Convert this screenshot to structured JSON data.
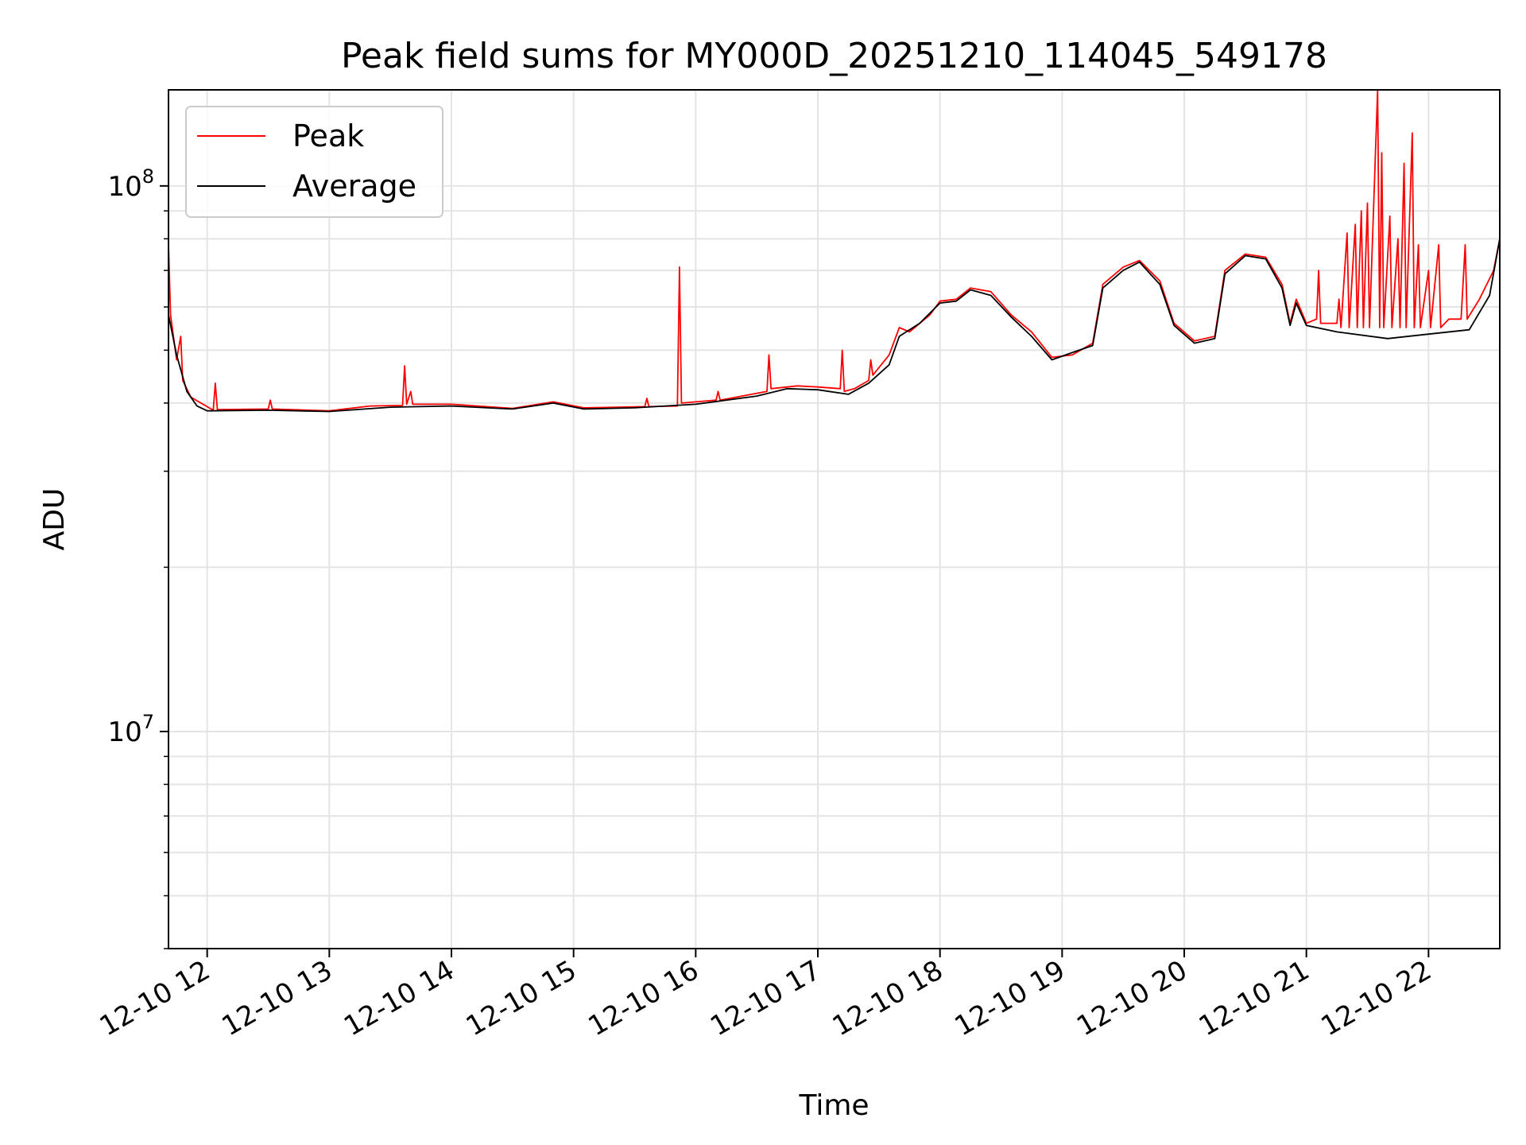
{
  "chart_data": {
    "type": "line",
    "title": "Peak field sums for MY000D_20251210_114045_549178",
    "xlabel": "Time",
    "ylabel": "ADU",
    "yscale": "log",
    "xlim": [
      "2025-12-10 11:41",
      "2025-12-10 22:35"
    ],
    "ylim": [
      4000000,
      150000000
    ],
    "grid": true,
    "legend_position": "upper-left",
    "x_ticks": [
      "12-10 12",
      "12-10 13",
      "12-10 14",
      "12-10 15",
      "12-10 16",
      "12-10 17",
      "12-10 18",
      "12-10 19",
      "12-10 20",
      "12-10 21",
      "12-10 22"
    ],
    "x_tick_times": [
      "2025-12-10 12:00",
      "2025-12-10 13:00",
      "2025-12-10 14:00",
      "2025-12-10 15:00",
      "2025-12-10 16:00",
      "2025-12-10 17:00",
      "2025-12-10 18:00",
      "2025-12-10 19:00",
      "2025-12-10 20:00",
      "2025-12-10 21:00",
      "2025-12-10 22:00"
    ],
    "y_ticks": [
      {
        "value": 10000000,
        "base": "10",
        "exp": "7"
      },
      {
        "value": 100000000,
        "base": "10",
        "exp": "8"
      }
    ],
    "series": [
      {
        "name": "Peak",
        "color": "#ff0000",
        "points": [
          [
            "2025-12-10 11:41",
            78000000
          ],
          [
            "2025-12-10 11:42",
            58000000
          ],
          [
            "2025-12-10 11:45",
            48000000
          ],
          [
            "2025-12-10 11:47",
            53000000
          ],
          [
            "2025-12-10 11:48",
            44000000
          ],
          [
            "2025-12-10 11:52",
            41000000
          ],
          [
            "2025-12-10 12:03",
            38800000
          ],
          [
            "2025-12-10 12:04",
            43500000
          ],
          [
            "2025-12-10 12:05",
            38900000
          ],
          [
            "2025-12-10 12:30",
            39000000
          ],
          [
            "2025-12-10 12:31",
            40500000
          ],
          [
            "2025-12-10 12:32",
            39000000
          ],
          [
            "2025-12-10 13:00",
            38700000
          ],
          [
            "2025-12-10 13:20",
            39500000
          ],
          [
            "2025-12-10 13:36",
            39600000
          ],
          [
            "2025-12-10 13:37",
            46800000
          ],
          [
            "2025-12-10 13:38",
            39800000
          ],
          [
            "2025-12-10 13:40",
            42000000
          ],
          [
            "2025-12-10 13:41",
            39800000
          ],
          [
            "2025-12-10 14:00",
            39800000
          ],
          [
            "2025-12-10 14:30",
            39100000
          ],
          [
            "2025-12-10 14:50",
            40200000
          ],
          [
            "2025-12-10 15:05",
            39200000
          ],
          [
            "2025-12-10 15:35",
            39400000
          ],
          [
            "2025-12-10 15:36",
            40800000
          ],
          [
            "2025-12-10 15:37",
            39400000
          ],
          [
            "2025-12-10 15:51",
            39500000
          ],
          [
            "2025-12-10 15:52",
            71000000
          ],
          [
            "2025-12-10 15:53",
            40000000
          ],
          [
            "2025-12-10 16:10",
            40500000
          ],
          [
            "2025-12-10 16:11",
            42000000
          ],
          [
            "2025-12-10 16:12",
            40500000
          ],
          [
            "2025-12-10 16:35",
            42000000
          ],
          [
            "2025-12-10 16:36",
            49000000
          ],
          [
            "2025-12-10 16:37",
            42500000
          ],
          [
            "2025-12-10 16:50",
            43000000
          ],
          [
            "2025-12-10 17:00",
            42800000
          ],
          [
            "2025-12-10 17:11",
            42500000
          ],
          [
            "2025-12-10 17:12",
            50000000
          ],
          [
            "2025-12-10 17:13",
            42000000
          ],
          [
            "2025-12-10 17:18",
            42500000
          ],
          [
            "2025-12-10 17:25",
            44000000
          ],
          [
            "2025-12-10 17:26",
            48000000
          ],
          [
            "2025-12-10 17:27",
            45000000
          ],
          [
            "2025-12-10 17:35",
            49000000
          ],
          [
            "2025-12-10 17:40",
            55000000
          ],
          [
            "2025-12-10 17:45",
            54000000
          ],
          [
            "2025-12-10 17:55",
            58000000
          ],
          [
            "2025-12-10 18:00",
            61500000
          ],
          [
            "2025-12-10 18:08",
            62000000
          ],
          [
            "2025-12-10 18:15",
            65000000
          ],
          [
            "2025-12-10 18:25",
            64000000
          ],
          [
            "2025-12-10 18:35",
            58000000
          ],
          [
            "2025-12-10 18:45",
            54000000
          ],
          [
            "2025-12-10 18:55",
            48500000
          ],
          [
            "2025-12-10 19:05",
            49000000
          ],
          [
            "2025-12-10 19:15",
            51500000
          ],
          [
            "2025-12-10 19:20",
            66000000
          ],
          [
            "2025-12-10 19:30",
            71000000
          ],
          [
            "2025-12-10 19:38",
            73000000
          ],
          [
            "2025-12-10 19:48",
            67000000
          ],
          [
            "2025-12-10 19:55",
            56000000
          ],
          [
            "2025-12-10 20:05",
            52000000
          ],
          [
            "2025-12-10 20:15",
            53000000
          ],
          [
            "2025-12-10 20:20",
            70000000
          ],
          [
            "2025-12-10 20:30",
            75000000
          ],
          [
            "2025-12-10 20:40",
            74000000
          ],
          [
            "2025-12-10 20:48",
            66000000
          ],
          [
            "2025-12-10 20:52",
            56000000
          ],
          [
            "2025-12-10 20:55",
            62000000
          ],
          [
            "2025-12-10 21:00",
            56000000
          ],
          [
            "2025-12-10 21:05",
            57000000
          ],
          [
            "2025-12-10 21:06",
            70000000
          ],
          [
            "2025-12-10 21:07",
            56000000
          ],
          [
            "2025-12-10 21:15",
            56000000
          ],
          [
            "2025-12-10 21:16",
            62000000
          ],
          [
            "2025-12-10 21:17",
            55000000
          ],
          [
            "2025-12-10 21:20",
            82000000
          ],
          [
            "2025-12-10 21:21",
            55000000
          ],
          [
            "2025-12-10 21:24",
            85000000
          ],
          [
            "2025-12-10 21:25",
            55000000
          ],
          [
            "2025-12-10 21:27",
            90000000
          ],
          [
            "2025-12-10 21:28",
            55000000
          ],
          [
            "2025-12-10 21:30",
            93000000
          ],
          [
            "2025-12-10 21:31",
            55000000
          ],
          [
            "2025-12-10 21:35",
            150000000
          ],
          [
            "2025-12-10 21:36",
            55000000
          ],
          [
            "2025-12-10 21:37",
            115000000
          ],
          [
            "2025-12-10 21:38",
            55000000
          ],
          [
            "2025-12-10 21:41",
            88000000
          ],
          [
            "2025-12-10 21:42",
            55000000
          ],
          [
            "2025-12-10 21:45",
            80000000
          ],
          [
            "2025-12-10 21:46",
            55000000
          ],
          [
            "2025-12-10 21:48",
            110000000
          ],
          [
            "2025-12-10 21:49",
            55000000
          ],
          [
            "2025-12-10 21:52",
            125000000
          ],
          [
            "2025-12-10 21:53",
            55000000
          ],
          [
            "2025-12-10 21:55",
            78000000
          ],
          [
            "2025-12-10 21:56",
            55000000
          ],
          [
            "2025-12-10 22:00",
            70000000
          ],
          [
            "2025-12-10 22:01",
            55000000
          ],
          [
            "2025-12-10 22:05",
            78000000
          ],
          [
            "2025-12-10 22:06",
            55000000
          ],
          [
            "2025-12-10 22:10",
            57000000
          ],
          [
            "2025-12-10 22:16",
            57000000
          ],
          [
            "2025-12-10 22:18",
            78000000
          ],
          [
            "2025-12-10 22:19",
            57000000
          ],
          [
            "2025-12-10 22:25",
            62000000
          ],
          [
            "2025-12-10 22:32",
            70000000
          ],
          [
            "2025-12-10 22:35",
            80000000
          ]
        ]
      },
      {
        "name": "Average",
        "color": "#000000",
        "points": [
          [
            "2025-12-10 11:41",
            58000000
          ],
          [
            "2025-12-10 11:45",
            49000000
          ],
          [
            "2025-12-10 11:50",
            42000000
          ],
          [
            "2025-12-10 11:55",
            39500000
          ],
          [
            "2025-12-10 12:00",
            38700000
          ],
          [
            "2025-12-10 12:30",
            38800000
          ],
          [
            "2025-12-10 13:00",
            38600000
          ],
          [
            "2025-12-10 13:30",
            39300000
          ],
          [
            "2025-12-10 14:00",
            39500000
          ],
          [
            "2025-12-10 14:30",
            39000000
          ],
          [
            "2025-12-10 14:50",
            40000000
          ],
          [
            "2025-12-10 15:05",
            39000000
          ],
          [
            "2025-12-10 15:30",
            39200000
          ],
          [
            "2025-12-10 16:00",
            39800000
          ],
          [
            "2025-12-10 16:30",
            41200000
          ],
          [
            "2025-12-10 16:45",
            42500000
          ],
          [
            "2025-12-10 17:00",
            42300000
          ],
          [
            "2025-12-10 17:15",
            41500000
          ],
          [
            "2025-12-10 17:25",
            43500000
          ],
          [
            "2025-12-10 17:35",
            47000000
          ],
          [
            "2025-12-10 17:40",
            53000000
          ],
          [
            "2025-12-10 17:50",
            56000000
          ],
          [
            "2025-12-10 18:00",
            61000000
          ],
          [
            "2025-12-10 18:08",
            61500000
          ],
          [
            "2025-12-10 18:15",
            64500000
          ],
          [
            "2025-12-10 18:25",
            63000000
          ],
          [
            "2025-12-10 18:35",
            57500000
          ],
          [
            "2025-12-10 18:45",
            53000000
          ],
          [
            "2025-12-10 18:55",
            48000000
          ],
          [
            "2025-12-10 19:05",
            49500000
          ],
          [
            "2025-12-10 19:15",
            51000000
          ],
          [
            "2025-12-10 19:20",
            65000000
          ],
          [
            "2025-12-10 19:30",
            70000000
          ],
          [
            "2025-12-10 19:38",
            72500000
          ],
          [
            "2025-12-10 19:48",
            66000000
          ],
          [
            "2025-12-10 19:55",
            55500000
          ],
          [
            "2025-12-10 20:05",
            51500000
          ],
          [
            "2025-12-10 20:15",
            52500000
          ],
          [
            "2025-12-10 20:20",
            69000000
          ],
          [
            "2025-12-10 20:30",
            74500000
          ],
          [
            "2025-12-10 20:40",
            73500000
          ],
          [
            "2025-12-10 20:48",
            65000000
          ],
          [
            "2025-12-10 20:52",
            55500000
          ],
          [
            "2025-12-10 20:55",
            61000000
          ],
          [
            "2025-12-10 21:00",
            55500000
          ],
          [
            "2025-12-10 21:15",
            54000000
          ],
          [
            "2025-12-10 21:40",
            52500000
          ],
          [
            "2025-12-10 22:00",
            53500000
          ],
          [
            "2025-12-10 22:20",
            54500000
          ],
          [
            "2025-12-10 22:30",
            63000000
          ],
          [
            "2025-12-10 22:35",
            80000000
          ]
        ]
      }
    ]
  }
}
